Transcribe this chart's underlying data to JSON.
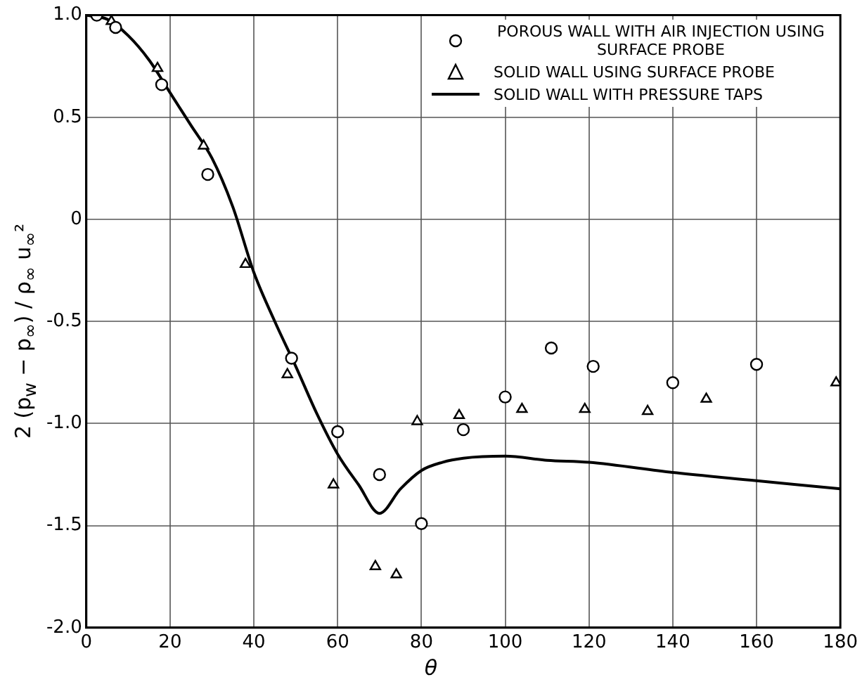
{
  "chart_data": {
    "type": "scatter",
    "xlabel": "θ",
    "ylabel": "2 (p$_{w}$ − p$_{∞}$) / ρ$_{∞}$ u$_{∞}$²",
    "xlim": [
      0,
      180
    ],
    "xticks": [
      0,
      20,
      40,
      60,
      80,
      100,
      120,
      140,
      160,
      180
    ],
    "ylim": [
      -2,
      1
    ],
    "yticks": [
      {
        "value": -2,
        "label": "-2.0"
      },
      {
        "value": -1.5,
        "label": "-1.5"
      },
      {
        "value": -1,
        "label": "-1.0"
      },
      {
        "value": -0.5,
        "label": "-0.5"
      },
      0,
      {
        "value": 0.5,
        "label": "0.5"
      },
      {
        "value": 1,
        "label": "1.0"
      }
    ],
    "grid": true,
    "legend": "top right",
    "series": [
      {
        "name": "POROUS WALL WITH AIR INJECTION USING SURFACE PROBE",
        "color": "#000000",
        "marker": "circle",
        "x": [
          2.5,
          7,
          18,
          29,
          49,
          60,
          70,
          80,
          90,
          100,
          111,
          121,
          140,
          160
        ],
        "values": [
          1.0,
          0.94,
          0.66,
          0.22,
          -0.68,
          -1.04,
          -1.25,
          -1.49,
          -1.03,
          -0.87,
          -0.63,
          -0.72,
          -0.8,
          -0.71
        ]
      },
      {
        "name": "SOLID WALL USING SURFACE PROBE",
        "color": "#000000",
        "marker": "triangle",
        "x": [
          6,
          17,
          28,
          38,
          48,
          59,
          69,
          74,
          79,
          89,
          104,
          119,
          134,
          148,
          179
        ],
        "values": [
          0.97,
          0.74,
          0.36,
          -0.22,
          -0.76,
          -1.3,
          -1.7,
          -1.74,
          -0.99,
          -0.96,
          -0.93,
          -0.93,
          -0.94,
          -0.88,
          -0.8
        ]
      },
      {
        "name": "SOLID WALL WITH PRESSURE TAPS",
        "type": "line",
        "color": "#000000",
        "marker": "none",
        "x": [
          0,
          5,
          10,
          15,
          20,
          25,
          30,
          35,
          40,
          45,
          50,
          55,
          60,
          65,
          70,
          75,
          80,
          85,
          90,
          100,
          110,
          120,
          140,
          160,
          180
        ],
        "values": [
          1.0,
          0.98,
          0.9,
          0.78,
          0.62,
          0.46,
          0.3,
          0.06,
          -0.26,
          -0.5,
          -0.72,
          -0.95,
          -1.15,
          -1.3,
          -1.44,
          -1.32,
          -1.23,
          -1.19,
          -1.17,
          -1.16,
          -1.18,
          -1.19,
          -1.24,
          -1.28,
          -1.32
        ]
      }
    ]
  }
}
